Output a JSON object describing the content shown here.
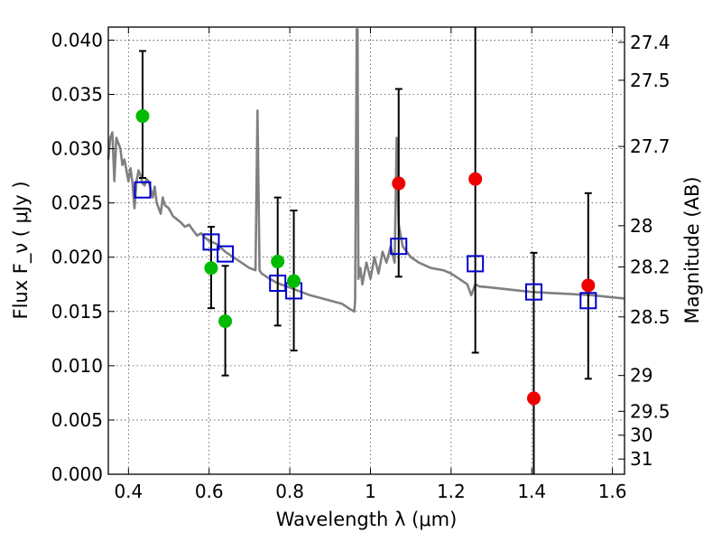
{
  "chart_data": {
    "type": "scatter",
    "xlabel": "Wavelength  λ (μm)",
    "ylabel_left": "Flux  F_ν  ( μJy )",
    "ylabel_right": "Magnitude (AB)",
    "xlim": [
      0.35,
      1.63
    ],
    "ylim": [
      0.0,
      0.0412
    ],
    "grid": true,
    "x_ticks": [
      0.4,
      0.6,
      0.8,
      1.0,
      1.2,
      1.4,
      1.6
    ],
    "x_tick_labels": [
      "0.4",
      "0.6",
      "0.8",
      "1",
      "1.2",
      "1.4",
      "1.6"
    ],
    "y_ticks": [
      0.0,
      0.005,
      0.01,
      0.015,
      0.02,
      0.025,
      0.03,
      0.035,
      0.04
    ],
    "y_tick_labels": [
      "0.000",
      "0.005",
      "0.010",
      "0.015",
      "0.020",
      "0.025",
      "0.030",
      "0.035",
      "0.040"
    ],
    "right_ticks": [
      {
        "label": "27.4",
        "flux": 0.0398
      },
      {
        "label": "27.5",
        "flux": 0.0363
      },
      {
        "label": "27.7",
        "flux": 0.0302
      },
      {
        "label": "28",
        "flux": 0.0229
      },
      {
        "label": "28.2",
        "flux": 0.0191
      },
      {
        "label": "28.5",
        "flux": 0.0145
      },
      {
        "label": "29",
        "flux": 0.0091
      },
      {
        "label": "29.5",
        "flux": 0.0058
      },
      {
        "label": "30",
        "flux": 0.0036
      },
      {
        "label": "31",
        "flux": 0.0014
      }
    ],
    "series": [
      {
        "kind": "model_spectrum",
        "color": "#808080",
        "x": [
          0.35,
          0.355,
          0.36,
          0.365,
          0.37,
          0.375,
          0.38,
          0.385,
          0.39,
          0.395,
          0.4,
          0.405,
          0.41,
          0.415,
          0.42,
          0.425,
          0.43,
          0.435,
          0.44,
          0.445,
          0.45,
          0.46,
          0.465,
          0.47,
          0.48,
          0.485,
          0.49,
          0.5,
          0.51,
          0.52,
          0.53,
          0.54,
          0.55,
          0.56,
          0.57,
          0.58,
          0.59,
          0.6,
          0.62,
          0.64,
          0.66,
          0.68,
          0.7,
          0.715,
          0.72,
          0.725,
          0.73,
          0.75,
          0.77,
          0.8,
          0.85,
          0.9,
          0.93,
          0.95,
          0.96,
          0.962,
          0.966,
          0.968,
          0.97,
          0.975,
          0.98,
          0.99,
          1.0,
          1.01,
          1.02,
          1.03,
          1.04,
          1.05,
          1.06,
          1.065,
          1.07,
          1.08,
          1.1,
          1.12,
          1.15,
          1.18,
          1.2,
          1.22,
          1.24,
          1.25,
          1.26,
          1.27,
          1.3,
          1.35,
          1.4,
          1.45,
          1.5,
          1.55,
          1.6,
          1.63
        ],
        "y": [
          0.029,
          0.031,
          0.0315,
          0.027,
          0.031,
          0.0305,
          0.03,
          0.0285,
          0.029,
          0.028,
          0.027,
          0.0282,
          0.0268,
          0.0245,
          0.027,
          0.028,
          0.0275,
          0.0268,
          0.0266,
          0.0272,
          0.027,
          0.0255,
          0.0265,
          0.025,
          0.024,
          0.0255,
          0.0248,
          0.0245,
          0.0238,
          0.0235,
          0.0232,
          0.0228,
          0.023,
          0.0225,
          0.022,
          0.0222,
          0.0218,
          0.0215,
          0.0212,
          0.0205,
          0.02,
          0.0195,
          0.019,
          0.0188,
          0.0335,
          0.0188,
          0.0185,
          0.018,
          0.0176,
          0.0172,
          0.0165,
          0.016,
          0.0157,
          0.0152,
          0.015,
          0.016,
          0.041,
          0.041,
          0.018,
          0.019,
          0.0175,
          0.0195,
          0.018,
          0.02,
          0.0185,
          0.0205,
          0.0195,
          0.021,
          0.0195,
          0.031,
          0.023,
          0.021,
          0.02,
          0.0195,
          0.019,
          0.0188,
          0.0185,
          0.018,
          0.0175,
          0.0165,
          0.0175,
          0.0173,
          0.0172,
          0.017,
          0.0168,
          0.0167,
          0.0166,
          0.0165,
          0.0163,
          0.0162
        ]
      },
      {
        "kind": "model_points",
        "marker": "open-square",
        "color": "#0000cc",
        "x": [
          0.435,
          0.605,
          0.64,
          0.77,
          0.81,
          1.07,
          1.26,
          1.405,
          1.54
        ],
        "y": [
          0.0262,
          0.0214,
          0.0203,
          0.0176,
          0.0169,
          0.021,
          0.0194,
          0.0168,
          0.016
        ]
      },
      {
        "kind": "observed_optical",
        "marker": "circle",
        "color": "#00bb00",
        "x": [
          0.435,
          0.605,
          0.64,
          0.77,
          0.81
        ],
        "y": [
          0.033,
          0.019,
          0.0141,
          0.0196,
          0.0178
        ],
        "err_low": [
          0.0273,
          0.0153,
          0.0091,
          0.0137,
          0.0114
        ],
        "err_high": [
          0.039,
          0.0228,
          0.0192,
          0.0255,
          0.0243
        ]
      },
      {
        "kind": "observed_nir",
        "marker": "circle",
        "color": "#ee0000",
        "x": [
          1.07,
          1.26,
          1.405,
          1.54
        ],
        "y": [
          0.0268,
          0.0272,
          0.007,
          0.0174
        ],
        "err_low": [
          0.0182,
          0.0112,
          0.0,
          0.0088
        ],
        "err_high": [
          0.0355,
          0.0412,
          0.0204,
          0.0259
        ]
      }
    ],
    "errorbar_color": "#000000"
  }
}
